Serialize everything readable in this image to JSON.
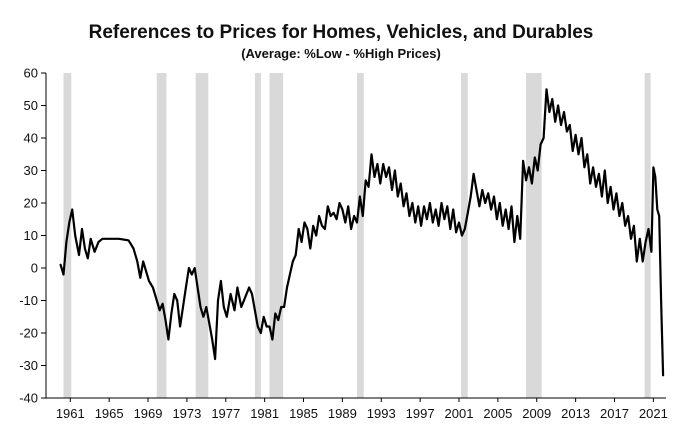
{
  "chart_data": {
    "type": "line",
    "title": "References to Prices for Homes, Vehicles, and Durables",
    "subtitle": "(Average:  %Low - %High Prices)",
    "xlabel": "",
    "ylabel": "",
    "xlim": [
      1958.5,
      2022.3
    ],
    "ylim": [
      -40,
      60
    ],
    "y_ticks": [
      60,
      50,
      40,
      30,
      20,
      10,
      0,
      -10,
      -20,
      -30,
      -40
    ],
    "x_ticks": [
      1961,
      1965,
      1969,
      1973,
      1977,
      1981,
      1985,
      1989,
      1993,
      1997,
      2001,
      2005,
      2009,
      2013,
      2017,
      2021
    ],
    "grid": false,
    "legend": "none",
    "colors": {
      "line": "#000000",
      "recession": "#d9d9d9",
      "axis": "#000000"
    },
    "recessions": [
      [
        1960.3,
        1961.1
      ],
      [
        1969.9,
        1970.9
      ],
      [
        1973.9,
        1975.2
      ],
      [
        1980.0,
        1980.5
      ],
      [
        1981.5,
        1982.9
      ],
      [
        1990.5,
        1991.2
      ],
      [
        2001.2,
        2001.9
      ],
      [
        2007.9,
        2009.5
      ],
      [
        2020.1,
        2020.4
      ]
    ],
    "series": [
      {
        "points": [
          [
            1960.0,
            1
          ],
          [
            1960.3,
            -2
          ],
          [
            1960.6,
            8
          ],
          [
            1960.9,
            14
          ],
          [
            1961.2,
            18
          ],
          [
            1961.5,
            10
          ],
          [
            1961.9,
            4
          ],
          [
            1962.2,
            12
          ],
          [
            1962.5,
            6
          ],
          [
            1962.8,
            3
          ],
          [
            1963.1,
            9
          ],
          [
            1963.5,
            5
          ],
          [
            1963.9,
            8
          ],
          [
            1964.3,
            9
          ],
          [
            1965.0,
            9
          ],
          [
            1966.0,
            9
          ],
          [
            1967.0,
            8.5
          ],
          [
            1967.5,
            6
          ],
          [
            1967.9,
            2
          ],
          [
            1968.2,
            -3
          ],
          [
            1968.5,
            2
          ],
          [
            1968.8,
            -1
          ],
          [
            1969.1,
            -4
          ],
          [
            1969.5,
            -6
          ],
          [
            1969.9,
            -10
          ],
          [
            1970.2,
            -13
          ],
          [
            1970.5,
            -11
          ],
          [
            1970.8,
            -16
          ],
          [
            1971.1,
            -22
          ],
          [
            1971.4,
            -14
          ],
          [
            1971.7,
            -8
          ],
          [
            1972.0,
            -10
          ],
          [
            1972.3,
            -18
          ],
          [
            1972.6,
            -12
          ],
          [
            1972.9,
            -6
          ],
          [
            1973.2,
            0
          ],
          [
            1973.5,
            -2
          ],
          [
            1973.8,
            0
          ],
          [
            1974.1,
            -6
          ],
          [
            1974.4,
            -12
          ],
          [
            1974.7,
            -15
          ],
          [
            1975.0,
            -12
          ],
          [
            1975.3,
            -17
          ],
          [
            1975.6,
            -22
          ],
          [
            1975.9,
            -28
          ],
          [
            1976.2,
            -10
          ],
          [
            1976.5,
            -4
          ],
          [
            1976.8,
            -12
          ],
          [
            1977.1,
            -15
          ],
          [
            1977.5,
            -8
          ],
          [
            1977.9,
            -13
          ],
          [
            1978.2,
            -6
          ],
          [
            1978.6,
            -12
          ],
          [
            1979.0,
            -9
          ],
          [
            1979.4,
            -6
          ],
          [
            1979.7,
            -8
          ],
          [
            1980.0,
            -13
          ],
          [
            1980.3,
            -18
          ],
          [
            1980.6,
            -20
          ],
          [
            1980.9,
            -15
          ],
          [
            1981.2,
            -18
          ],
          [
            1981.5,
            -18
          ],
          [
            1981.8,
            -22
          ],
          [
            1982.1,
            -14
          ],
          [
            1982.4,
            -16
          ],
          [
            1982.7,
            -12
          ],
          [
            1983.0,
            -12
          ],
          [
            1983.3,
            -6
          ],
          [
            1983.6,
            -2
          ],
          [
            1983.9,
            2
          ],
          [
            1984.2,
            4
          ],
          [
            1984.5,
            12
          ],
          [
            1984.8,
            8
          ],
          [
            1985.1,
            14
          ],
          [
            1985.4,
            12
          ],
          [
            1985.7,
            6
          ],
          [
            1986.0,
            13
          ],
          [
            1986.3,
            10
          ],
          [
            1986.6,
            16
          ],
          [
            1986.9,
            13
          ],
          [
            1987.2,
            12
          ],
          [
            1987.5,
            19
          ],
          [
            1987.8,
            16
          ],
          [
            1988.1,
            17
          ],
          [
            1988.4,
            15
          ],
          [
            1988.7,
            20
          ],
          [
            1989.0,
            18
          ],
          [
            1989.3,
            14
          ],
          [
            1989.6,
            19
          ],
          [
            1989.9,
            12
          ],
          [
            1990.2,
            16
          ],
          [
            1990.5,
            14
          ],
          [
            1990.8,
            22
          ],
          [
            1991.1,
            16
          ],
          [
            1991.4,
            27
          ],
          [
            1991.7,
            25
          ],
          [
            1992.0,
            35
          ],
          [
            1992.3,
            28
          ],
          [
            1992.6,
            32
          ],
          [
            1992.9,
            26
          ],
          [
            1993.2,
            32
          ],
          [
            1993.5,
            28
          ],
          [
            1993.8,
            31
          ],
          [
            1994.1,
            24
          ],
          [
            1994.4,
            30
          ],
          [
            1994.7,
            22
          ],
          [
            1995.0,
            26
          ],
          [
            1995.3,
            19
          ],
          [
            1995.6,
            23
          ],
          [
            1995.9,
            16
          ],
          [
            1996.2,
            20
          ],
          [
            1996.5,
            14
          ],
          [
            1996.8,
            19
          ],
          [
            1997.1,
            13
          ],
          [
            1997.4,
            19
          ],
          [
            1997.7,
            15
          ],
          [
            1998.0,
            20
          ],
          [
            1998.3,
            14
          ],
          [
            1998.6,
            18
          ],
          [
            1998.9,
            13
          ],
          [
            1999.2,
            20
          ],
          [
            1999.5,
            15
          ],
          [
            1999.8,
            19
          ],
          [
            2000.1,
            12
          ],
          [
            2000.4,
            18
          ],
          [
            2000.7,
            11
          ],
          [
            2001.0,
            14
          ],
          [
            2001.3,
            10
          ],
          [
            2001.6,
            12
          ],
          [
            2001.9,
            17
          ],
          [
            2002.2,
            22
          ],
          [
            2002.5,
            29
          ],
          [
            2002.8,
            24
          ],
          [
            2003.1,
            19
          ],
          [
            2003.4,
            24
          ],
          [
            2003.7,
            20
          ],
          [
            2004.0,
            23
          ],
          [
            2004.3,
            18
          ],
          [
            2004.6,
            22
          ],
          [
            2004.9,
            15
          ],
          [
            2005.2,
            20
          ],
          [
            2005.5,
            13
          ],
          [
            2005.8,
            18
          ],
          [
            2006.1,
            12
          ],
          [
            2006.4,
            19
          ],
          [
            2006.7,
            8
          ],
          [
            2007.0,
            16
          ],
          [
            2007.3,
            9
          ],
          [
            2007.6,
            33
          ],
          [
            2007.9,
            27
          ],
          [
            2008.2,
            31
          ],
          [
            2008.5,
            26
          ],
          [
            2008.8,
            34
          ],
          [
            2009.1,
            30
          ],
          [
            2009.4,
            38
          ],
          [
            2009.7,
            40
          ],
          [
            2010.0,
            55
          ],
          [
            2010.3,
            48
          ],
          [
            2010.6,
            52
          ],
          [
            2010.9,
            45
          ],
          [
            2011.2,
            50
          ],
          [
            2011.5,
            44
          ],
          [
            2011.8,
            48
          ],
          [
            2012.1,
            42
          ],
          [
            2012.4,
            44
          ],
          [
            2012.7,
            36
          ],
          [
            2013.0,
            41
          ],
          [
            2013.3,
            35
          ],
          [
            2013.6,
            40
          ],
          [
            2013.9,
            31
          ],
          [
            2014.2,
            35
          ],
          [
            2014.5,
            26
          ],
          [
            2014.8,
            31
          ],
          [
            2015.1,
            25
          ],
          [
            2015.4,
            29
          ],
          [
            2015.7,
            22
          ],
          [
            2016.0,
            30
          ],
          [
            2016.3,
            20
          ],
          [
            2016.6,
            25
          ],
          [
            2016.9,
            18
          ],
          [
            2017.2,
            23
          ],
          [
            2017.5,
            16
          ],
          [
            2017.8,
            20
          ],
          [
            2018.1,
            13
          ],
          [
            2018.4,
            16
          ],
          [
            2018.7,
            9
          ],
          [
            2019.0,
            13
          ],
          [
            2019.3,
            2
          ],
          [
            2019.6,
            9
          ],
          [
            2019.9,
            2
          ],
          [
            2020.2,
            8
          ],
          [
            2020.5,
            12
          ],
          [
            2020.8,
            5
          ],
          [
            2021.0,
            31
          ],
          [
            2021.2,
            28
          ],
          [
            2021.4,
            18
          ],
          [
            2021.6,
            16
          ],
          [
            2021.8,
            -10
          ],
          [
            2022.0,
            -33
          ]
        ]
      }
    ]
  }
}
